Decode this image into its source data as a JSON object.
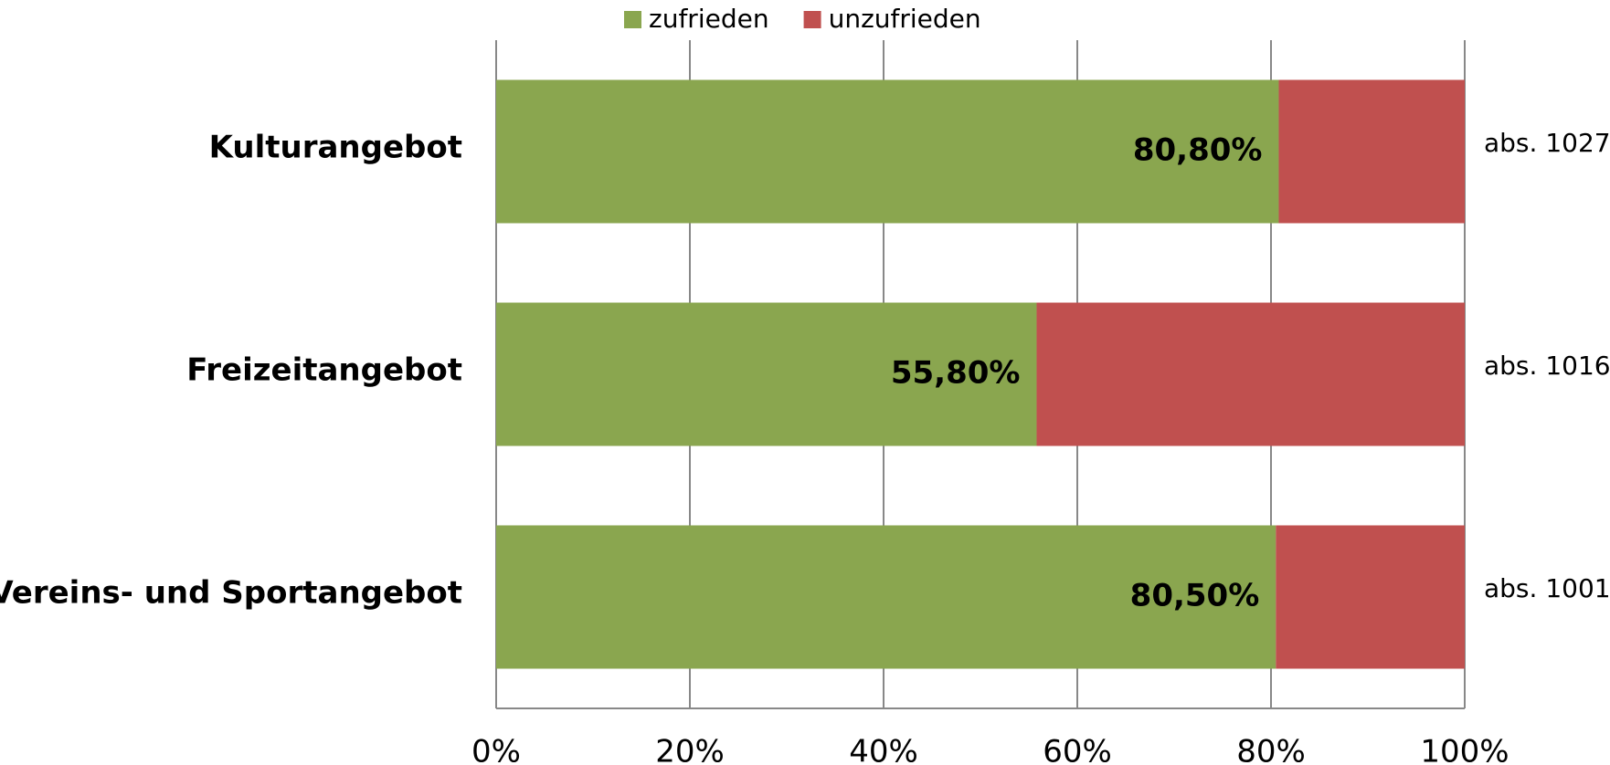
{
  "chart_data": {
    "type": "stacked_bar_horizontal",
    "categories": [
      "Kulturangebot",
      "Freizeitangebot",
      "Vereins- und Sportangebot"
    ],
    "series": [
      {
        "name": "zufrieden",
        "color": "#8aa64f",
        "values": [
          80.8,
          55.8,
          80.5
        ],
        "value_labels": [
          "80,80%",
          "55,80%",
          "80,50%"
        ]
      },
      {
        "name": "unzufrieden",
        "color": "#c0504f",
        "values": [
          19.2,
          44.2,
          19.5
        ]
      }
    ],
    "annotations": [
      "abs. 1027",
      "abs. 1016",
      "abs. 1001"
    ],
    "xlim": [
      0,
      100
    ],
    "xticks": [
      {
        "value": 0,
        "label": "0%"
      },
      {
        "value": 20,
        "label": "20%"
      },
      {
        "value": 40,
        "label": "40%"
      },
      {
        "value": 60,
        "label": "60%"
      },
      {
        "value": 80,
        "label": "80%"
      },
      {
        "value": 100,
        "label": "100%"
      }
    ],
    "grid": true,
    "legend": "top"
  }
}
